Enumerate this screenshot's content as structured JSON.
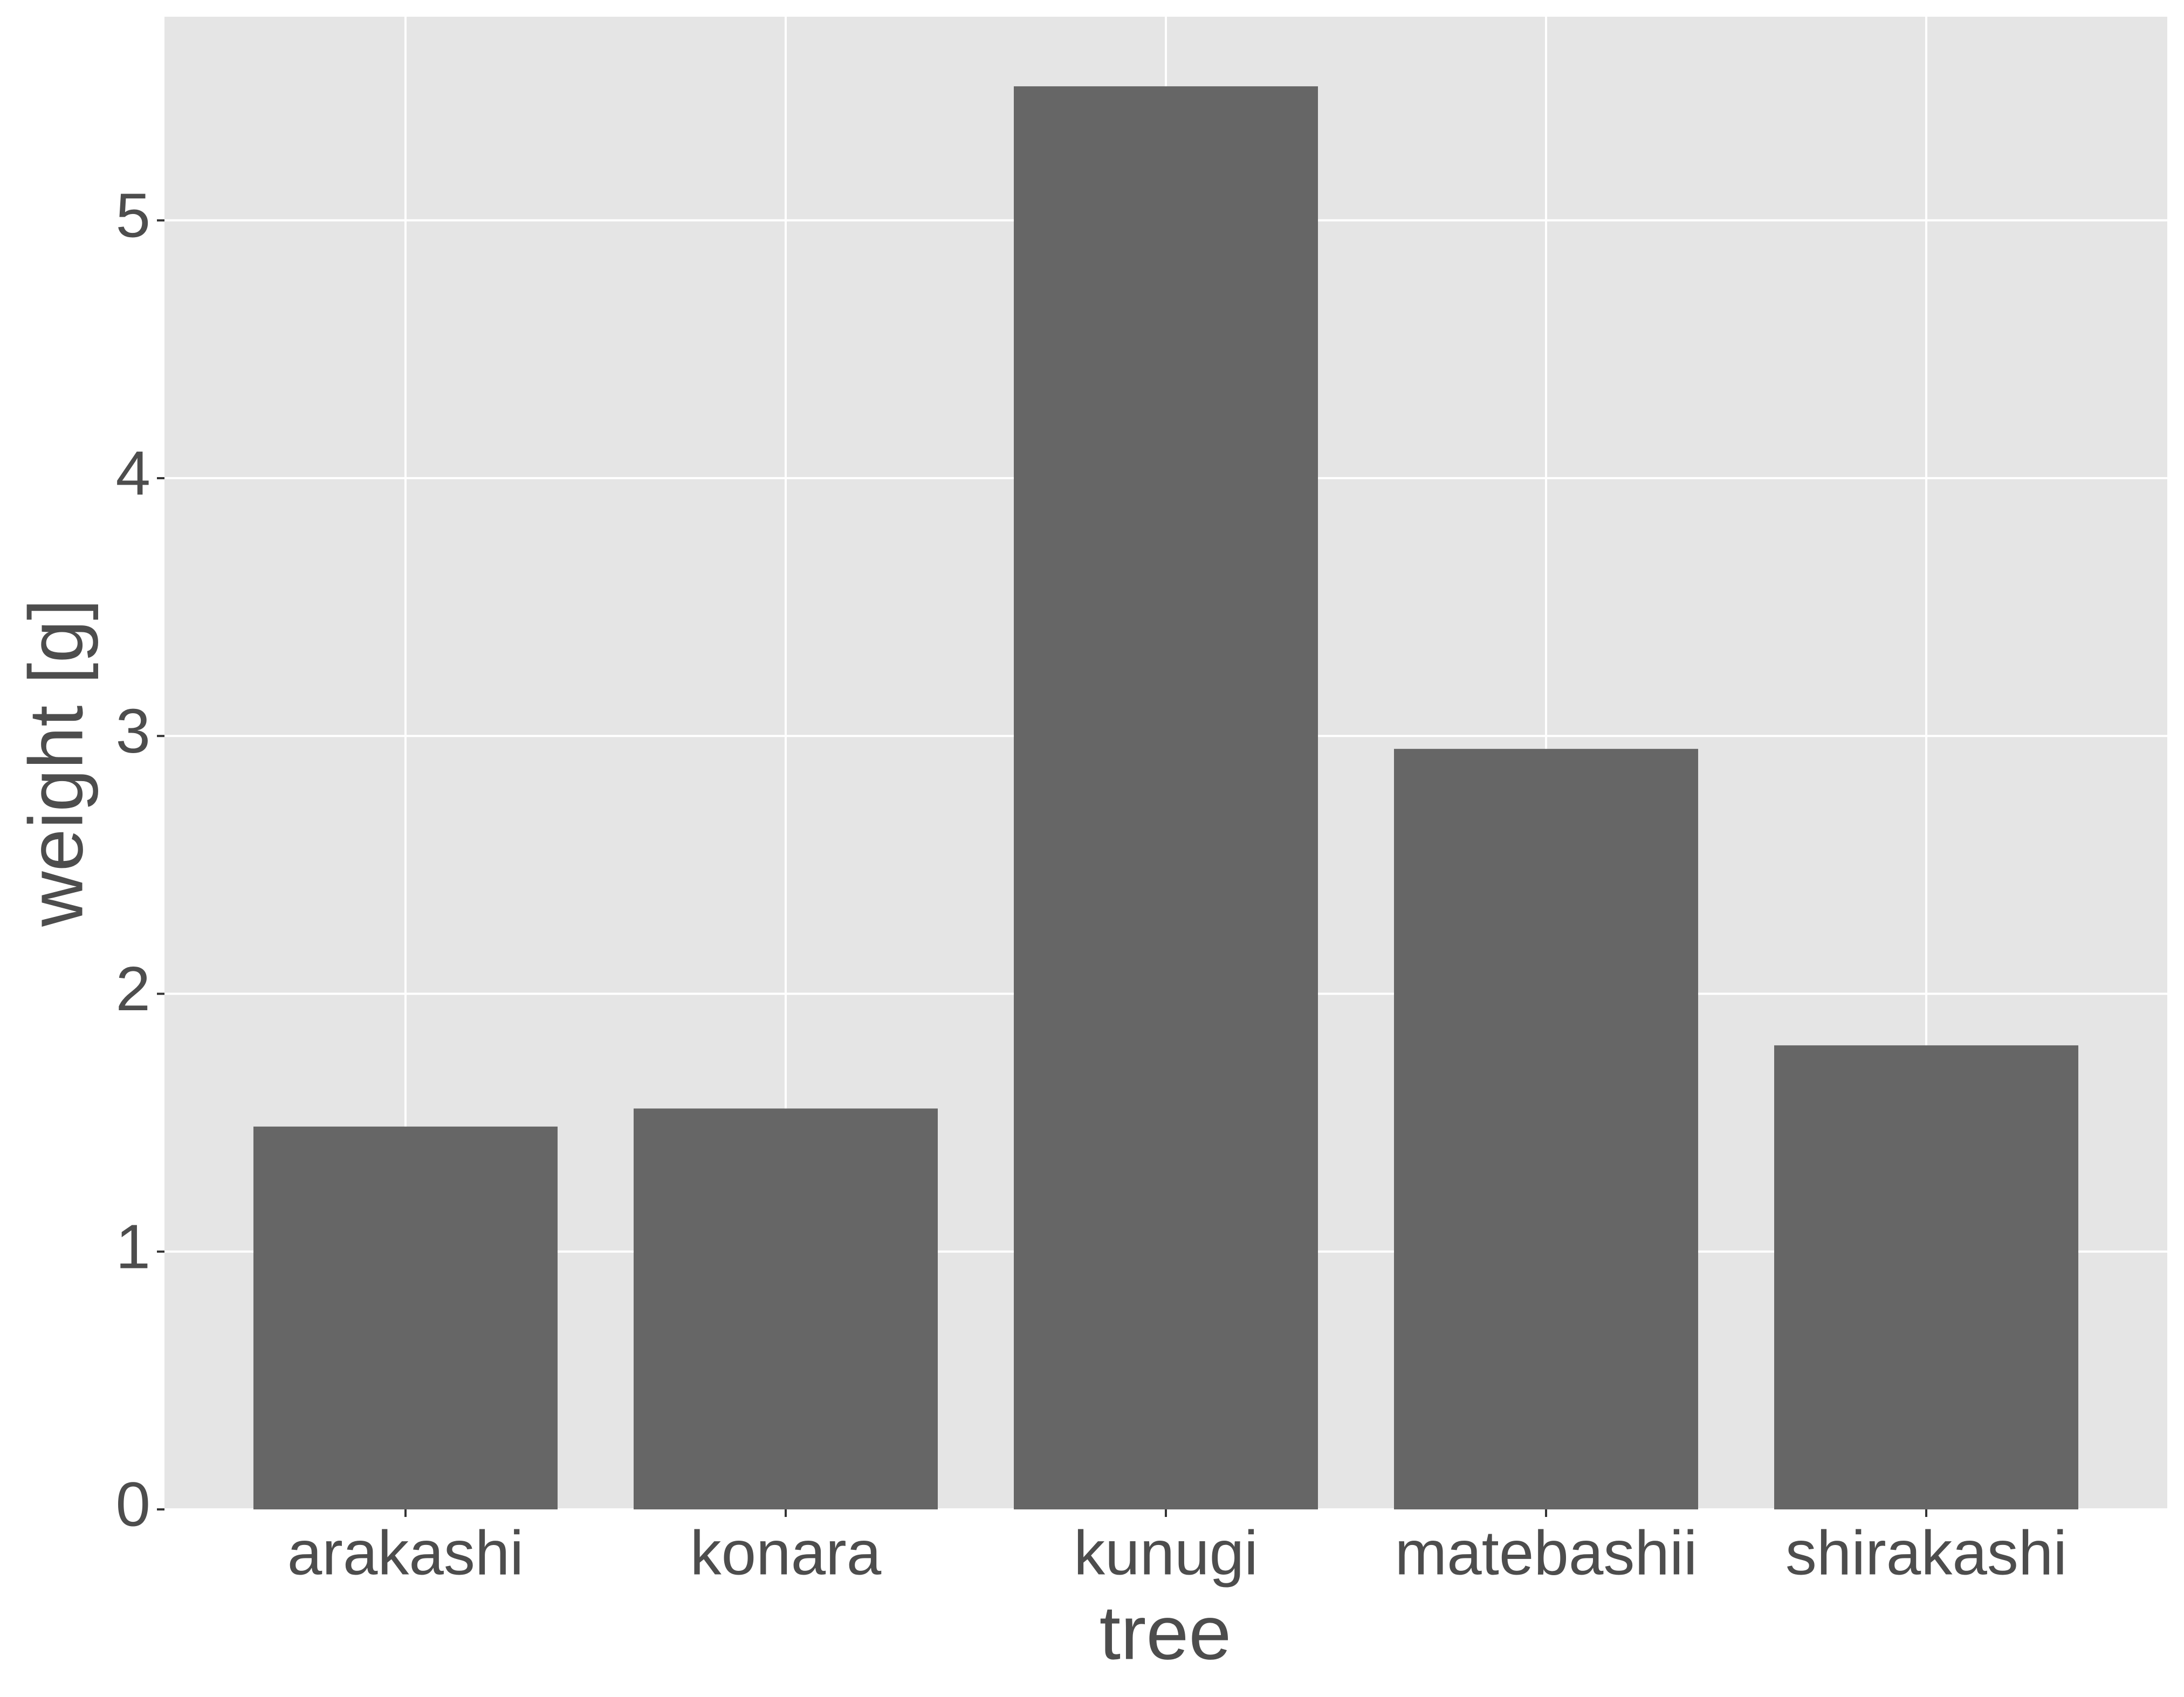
{
  "chart_data": {
    "type": "bar",
    "x_label": "tree",
    "y_label": "weight [g]",
    "categories": [
      "arakashi",
      "konara",
      "kunugi",
      "matebashii",
      "shirakashi"
    ],
    "values": [
      1.485,
      1.555,
      5.52,
      2.95,
      1.8
    ],
    "color": "#666666",
    "ylim": [
      0,
      5.79
    ],
    "yticks": [
      0,
      1,
      2,
      3,
      4,
      5
    ],
    "grid": true
  }
}
